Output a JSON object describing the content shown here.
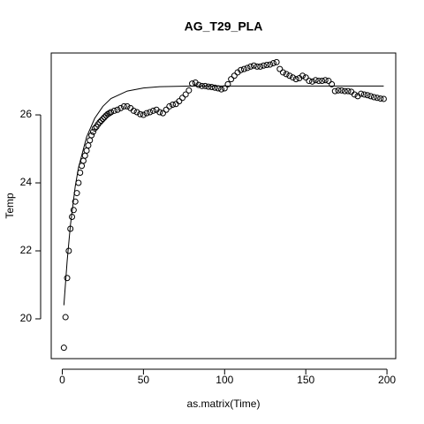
{
  "chart_data": {
    "type": "scatter",
    "title": "AG_T29_PLA",
    "x_label": "as.matrix(Time)",
    "y_label": "Temp",
    "xlim": [
      -6.8,
      205.4
    ],
    "ylim": [
      18.83,
      27.82
    ],
    "xticks": [
      0,
      50,
      100,
      150,
      200
    ],
    "yticks": [
      20,
      22,
      24,
      26
    ],
    "series": [
      {
        "type": "scatter",
        "color": "#000000",
        "x": [
          1,
          2,
          3,
          4,
          5,
          6,
          7,
          8,
          9,
          10,
          11,
          12,
          13,
          14,
          15,
          16,
          17,
          18,
          19,
          20,
          21,
          22,
          23,
          24,
          25,
          26,
          27,
          28,
          29,
          30,
          32,
          34,
          36,
          38,
          40,
          42,
          44,
          46,
          48,
          50,
          52,
          54,
          56,
          58,
          60,
          62,
          64,
          66,
          68,
          70,
          72,
          74,
          76,
          78,
          80,
          82,
          84,
          86,
          88,
          90,
          92,
          94,
          96,
          98,
          100,
          102,
          104,
          106,
          108,
          110,
          112,
          114,
          116,
          118,
          120,
          122,
          124,
          126,
          128,
          130,
          132,
          134,
          136,
          138,
          140,
          142,
          144,
          146,
          148,
          150,
          152,
          154,
          156,
          158,
          160,
          162,
          164,
          166,
          168,
          170,
          172,
          174,
          176,
          178,
          180,
          182,
          184,
          186,
          188,
          190,
          192,
          194,
          196,
          198
        ],
        "values": [
          19.15,
          20.05,
          21.2,
          22.0,
          22.65,
          23.0,
          23.2,
          23.45,
          23.7,
          24.0,
          24.3,
          24.5,
          24.65,
          24.8,
          24.95,
          25.1,
          25.25,
          25.4,
          25.5,
          25.6,
          25.65,
          25.72,
          25.78,
          25.83,
          25.88,
          25.93,
          25.98,
          26.02,
          26.05,
          26.08,
          26.12,
          26.15,
          26.2,
          26.25,
          26.25,
          26.2,
          26.12,
          26.08,
          26.02,
          26.0,
          26.05,
          26.08,
          26.12,
          26.15,
          26.08,
          26.05,
          26.15,
          26.25,
          26.3,
          26.32,
          26.4,
          26.5,
          26.6,
          26.72,
          26.92,
          26.95,
          26.88,
          26.85,
          26.85,
          26.83,
          26.82,
          26.8,
          26.78,
          26.75,
          26.78,
          26.9,
          27.05,
          27.15,
          27.25,
          27.32,
          27.35,
          27.38,
          27.42,
          27.45,
          27.42,
          27.42,
          27.45,
          27.47,
          27.48,
          27.52,
          27.55,
          27.35,
          27.25,
          27.2,
          27.15,
          27.1,
          27.05,
          27.08,
          27.15,
          27.1,
          27.0,
          26.98,
          27.02,
          27.0,
          27.0,
          27.02,
          27.0,
          26.9,
          26.7,
          26.72,
          26.72,
          26.7,
          26.7,
          26.68,
          26.6,
          26.55,
          26.62,
          26.6,
          26.58,
          26.55,
          26.52,
          26.5,
          26.48,
          26.47
        ]
      },
      {
        "type": "line",
        "color": "#000000",
        "x": [
          1,
          3,
          5,
          8,
          10,
          15,
          20,
          25,
          30,
          40,
          50,
          60,
          80,
          198
        ],
        "values": [
          20.4,
          21.7,
          22.75,
          23.9,
          24.45,
          25.35,
          25.9,
          26.25,
          26.48,
          26.7,
          26.79,
          26.83,
          26.85,
          26.85
        ]
      }
    ]
  }
}
